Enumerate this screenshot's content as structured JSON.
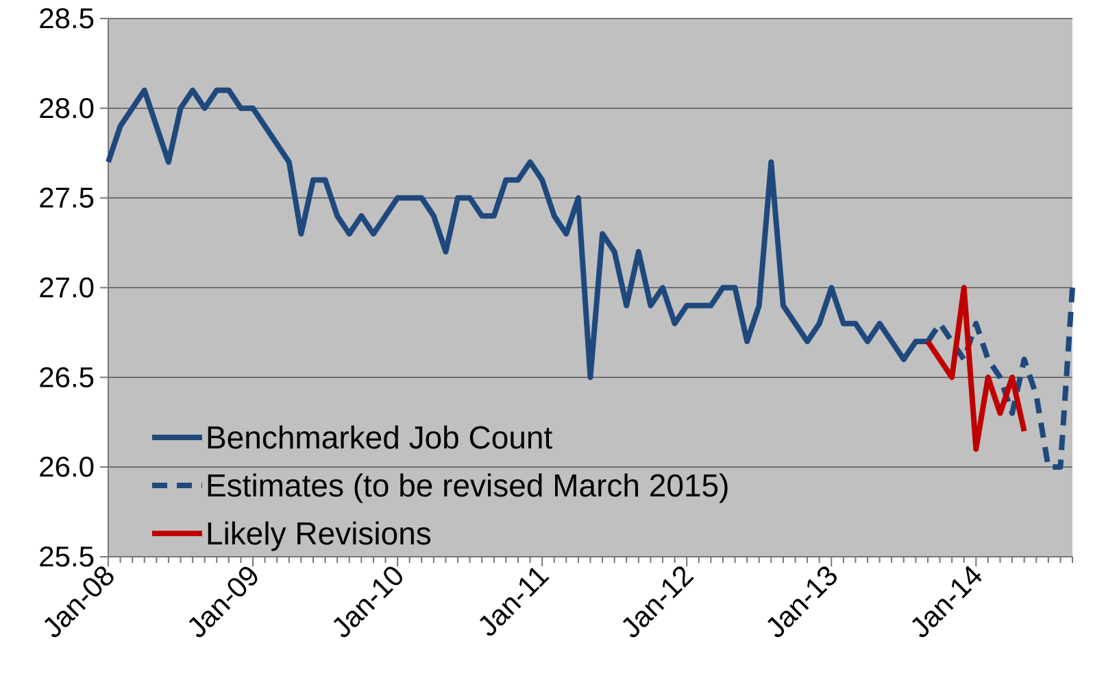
{
  "chart_data": {
    "type": "line",
    "categories": [
      "Jan-08",
      null,
      null,
      null,
      null,
      null,
      null,
      null,
      null,
      null,
      null,
      null,
      "Jan-09",
      null,
      null,
      null,
      null,
      null,
      null,
      null,
      null,
      null,
      null,
      null,
      "Jan-10",
      null,
      null,
      null,
      null,
      null,
      null,
      null,
      null,
      null,
      null,
      null,
      "Jan-11",
      null,
      null,
      null,
      null,
      null,
      null,
      null,
      null,
      null,
      null,
      null,
      "Jan-12",
      null,
      null,
      null,
      null,
      null,
      null,
      null,
      null,
      null,
      null,
      null,
      "Jan-13",
      null,
      null,
      null,
      null,
      null,
      null,
      null,
      null,
      null,
      null,
      null,
      "Jan-14",
      null,
      null,
      null,
      null,
      null,
      null,
      null,
      null
    ],
    "series": [
      {
        "name": "Benchmarked Job Count",
        "color": "#1f497d",
        "dash": false,
        "values": [
          27.7,
          27.9,
          28.0,
          28.1,
          27.9,
          27.7,
          28.0,
          28.1,
          28.0,
          28.1,
          28.1,
          28.0,
          28.0,
          27.9,
          27.8,
          27.7,
          27.3,
          27.6,
          27.6,
          27.4,
          27.3,
          27.4,
          27.3,
          27.4,
          27.5,
          27.5,
          27.5,
          27.4,
          27.2,
          27.5,
          27.5,
          27.4,
          27.4,
          27.6,
          27.6,
          27.7,
          27.6,
          27.4,
          27.3,
          27.5,
          26.5,
          27.3,
          27.2,
          26.9,
          27.2,
          26.9,
          27.0,
          26.8,
          26.9,
          26.9,
          26.9,
          27.0,
          27.0,
          26.7,
          26.9,
          27.7,
          26.9,
          26.8,
          26.7,
          26.8,
          27.0,
          26.8,
          26.8,
          26.7,
          26.8,
          26.7,
          26.6,
          26.7,
          26.7,
          null,
          null,
          null,
          null,
          null,
          null,
          null,
          null,
          null,
          null,
          null,
          null
        ]
      },
      {
        "name": "Estimates (to be revised March 2015)",
        "color": "#1f497d",
        "dash": true,
        "values": [
          null,
          null,
          null,
          null,
          null,
          null,
          null,
          null,
          null,
          null,
          null,
          null,
          null,
          null,
          null,
          null,
          null,
          null,
          null,
          null,
          null,
          null,
          null,
          null,
          null,
          null,
          null,
          null,
          null,
          null,
          null,
          null,
          null,
          null,
          null,
          null,
          null,
          null,
          null,
          null,
          null,
          null,
          null,
          null,
          null,
          null,
          null,
          null,
          null,
          null,
          null,
          null,
          null,
          null,
          null,
          null,
          null,
          null,
          null,
          null,
          null,
          null,
          null,
          null,
          null,
          null,
          null,
          null,
          26.7,
          26.8,
          26.7,
          26.6,
          26.8,
          26.6,
          26.5,
          26.3,
          26.6,
          26.4,
          26.0,
          26.0,
          27.0
        ]
      },
      {
        "name": "Likely Revisions",
        "color": "#c00000",
        "dash": false,
        "values": [
          null,
          null,
          null,
          null,
          null,
          null,
          null,
          null,
          null,
          null,
          null,
          null,
          null,
          null,
          null,
          null,
          null,
          null,
          null,
          null,
          null,
          null,
          null,
          null,
          null,
          null,
          null,
          null,
          null,
          null,
          null,
          null,
          null,
          null,
          null,
          null,
          null,
          null,
          null,
          null,
          null,
          null,
          null,
          null,
          null,
          null,
          null,
          null,
          null,
          null,
          null,
          null,
          null,
          null,
          null,
          null,
          null,
          null,
          null,
          null,
          null,
          null,
          null,
          null,
          null,
          null,
          null,
          null,
          26.7,
          26.6,
          26.5,
          27.0,
          26.1,
          26.5,
          26.3,
          26.5,
          26.2,
          null,
          null,
          null,
          null
        ]
      }
    ],
    "ylim": [
      25.5,
      28.5
    ],
    "yticks": [
      {
        "value": 25.5,
        "label": "25.5"
      },
      {
        "value": 26,
        "label": "26.0"
      },
      {
        "value": 26.5,
        "label": "26.5"
      },
      {
        "value": 27,
        "label": "27.0"
      },
      {
        "value": 27.5,
        "label": "27.5"
      },
      {
        "value": 28,
        "label": "28.0"
      },
      {
        "value": 28.5,
        "label": "28.5"
      }
    ],
    "grid": true,
    "legend": "lower-left",
    "background": "#c0c0c0"
  }
}
